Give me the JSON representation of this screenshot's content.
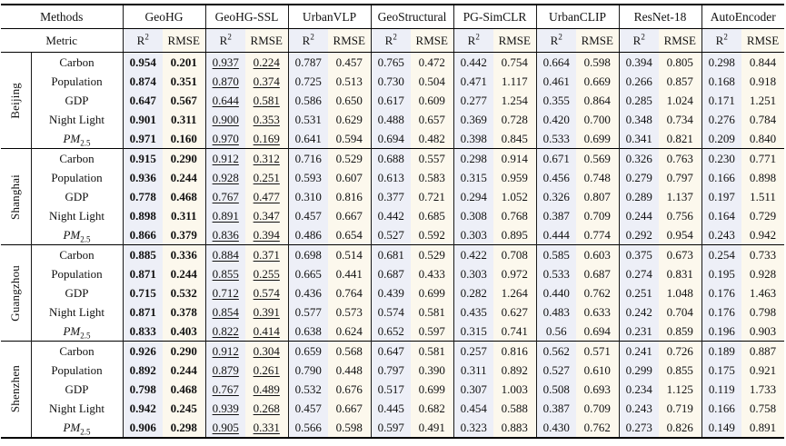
{
  "header": {
    "methods_label": "Methods",
    "metric_label": "Metric",
    "r2": {
      "text": "R",
      "sup": "2"
    },
    "rmse": "RMSE"
  },
  "methods": [
    "GeoHG",
    "GeoHG-SSL",
    "UrbanVLP",
    "GeoStructural",
    "PG-SimCLR",
    "UrbanCLIP",
    "ResNet-18",
    "AutoEncoder"
  ],
  "colors": {
    "r2_column_bg": "#edeff7",
    "rmse_column_bg": "#fcf8ed",
    "rule_color": "#000000"
  },
  "emphasis": {
    "bold_method": "GeoHG",
    "underlined_method": "GeoHG-SSL"
  },
  "sections": [
    {
      "city": "Beijing",
      "rows": [
        {
          "indicator": "Carbon",
          "values": [
            "0.954",
            "0.201",
            "0.937",
            "0.224",
            "0.787",
            "0.457",
            "0.765",
            "0.472",
            "0.442",
            "0.754",
            "0.664",
            "0.598",
            "0.394",
            "0.805",
            "0.298",
            "0.844"
          ]
        },
        {
          "indicator": "Population",
          "values": [
            "0.874",
            "0.351",
            "0.870",
            "0.374",
            "0.725",
            "0.513",
            "0.730",
            "0.504",
            "0.471",
            "1.117",
            "0.461",
            "0.669",
            "0.266",
            "0.857",
            "0.168",
            "0.918"
          ]
        },
        {
          "indicator": "GDP",
          "values": [
            "0.647",
            "0.567",
            "0.644",
            "0.581",
            "0.586",
            "0.650",
            "0.617",
            "0.609",
            "0.277",
            "1.254",
            "0.355",
            "0.864",
            "0.285",
            "1.024",
            "0.171",
            "1.251"
          ]
        },
        {
          "indicator": "Night Light",
          "values": [
            "0.901",
            "0.311",
            "0.900",
            "0.353",
            "0.531",
            "0.629",
            "0.488",
            "0.657",
            "0.369",
            "0.728",
            "0.420",
            "0.700",
            "0.348",
            "0.734",
            "0.276",
            "0.784"
          ]
        },
        {
          "indicator": "PM",
          "indicator_sub": "2.5",
          "italic": true,
          "values": [
            "0.971",
            "0.160",
            "0.970",
            "0.169",
            "0.641",
            "0.594",
            "0.694",
            "0.482",
            "0.398",
            "0.845",
            "0.533",
            "0.699",
            "0.341",
            "0.821",
            "0.209",
            "0.840"
          ]
        }
      ]
    },
    {
      "city": "Shanghai",
      "rows": [
        {
          "indicator": "Carbon",
          "values": [
            "0.915",
            "0.290",
            "0.912",
            "0.312",
            "0.716",
            "0.529",
            "0.688",
            "0.557",
            "0.298",
            "0.914",
            "0.671",
            "0.569",
            "0.326",
            "0.763",
            "0.230",
            "0.771"
          ]
        },
        {
          "indicator": "Population",
          "values": [
            "0.936",
            "0.244",
            "0.928",
            "0.251",
            "0.593",
            "0.607",
            "0.613",
            "0.583",
            "0.315",
            "0.959",
            "0.456",
            "0.748",
            "0.279",
            "0.797",
            "0.166",
            "0.898"
          ]
        },
        {
          "indicator": "GDP",
          "values": [
            "0.778",
            "0.468",
            "0.767",
            "0.477",
            "0.310",
            "0.816",
            "0.377",
            "0.721",
            "0.294",
            "1.052",
            "0.326",
            "0.807",
            "0.289",
            "1.137",
            "0.197",
            "1.511"
          ]
        },
        {
          "indicator": "Night Light",
          "values": [
            "0.898",
            "0.311",
            "0.891",
            "0.347",
            "0.457",
            "0.667",
            "0.442",
            "0.685",
            "0.308",
            "0.768",
            "0.387",
            "0.709",
            "0.244",
            "0.756",
            "0.164",
            "0.729"
          ]
        },
        {
          "indicator": "PM",
          "indicator_sub": "2.5",
          "italic": true,
          "values": [
            "0.866",
            "0.379",
            "0.836",
            "0.394",
            "0.486",
            "0.654",
            "0.527",
            "0.592",
            "0.303",
            "0.895",
            "0.444",
            "0.774",
            "0.292",
            "0.954",
            "0.243",
            "0.942"
          ]
        }
      ]
    },
    {
      "city": "Guangzhou",
      "rows": [
        {
          "indicator": "Carbon",
          "values": [
            "0.885",
            "0.336",
            "0.884",
            "0.371",
            "0.698",
            "0.514",
            "0.681",
            "0.529",
            "0.422",
            "0.708",
            "0.585",
            "0.603",
            "0.375",
            "0.673",
            "0.254",
            "0.733"
          ]
        },
        {
          "indicator": "Population",
          "values": [
            "0.871",
            "0.244",
            "0.855",
            "0.255",
            "0.665",
            "0.441",
            "0.687",
            "0.433",
            "0.303",
            "0.972",
            "0.533",
            "0.687",
            "0.274",
            "0.831",
            "0.195",
            "0.928"
          ]
        },
        {
          "indicator": "GDP",
          "values": [
            "0.715",
            "0.532",
            "0.712",
            "0.574",
            "0.436",
            "0.764",
            "0.439",
            "0.699",
            "0.282",
            "1.264",
            "0.440",
            "0.762",
            "0.251",
            "1.048",
            "0.176",
            "1.463"
          ]
        },
        {
          "indicator": "Night Light",
          "values": [
            "0.871",
            "0.378",
            "0.854",
            "0.391",
            "0.577",
            "0.573",
            "0.574",
            "0.581",
            "0.435",
            "0.627",
            "0.483",
            "0.633",
            "0.242",
            "0.704",
            "0.176",
            "0.798"
          ]
        },
        {
          "indicator": "PM",
          "indicator_sub": "2.5",
          "italic": true,
          "values": [
            "0.833",
            "0.403",
            "0.822",
            "0.414",
            "0.638",
            "0.624",
            "0.652",
            "0.597",
            "0.315",
            "0.741",
            "0.56",
            "0.694",
            "0.231",
            "0.859",
            "0.196",
            "0.903"
          ]
        }
      ]
    },
    {
      "city": "Shenzhen",
      "rows": [
        {
          "indicator": "Carbon",
          "values": [
            "0.926",
            "0.290",
            "0.912",
            "0.304",
            "0.659",
            "0.568",
            "0.647",
            "0.581",
            "0.257",
            "0.816",
            "0.562",
            "0.571",
            "0.241",
            "0.726",
            "0.189",
            "0.887"
          ]
        },
        {
          "indicator": "Population",
          "values": [
            "0.892",
            "0.244",
            "0.879",
            "0.261",
            "0.790",
            "0.448",
            "0.797",
            "0.390",
            "0.311",
            "0.892",
            "0.527",
            "0.610",
            "0.299",
            "0.855",
            "0.175",
            "0.921"
          ]
        },
        {
          "indicator": "GDP",
          "values": [
            "0.798",
            "0.468",
            "0.767",
            "0.489",
            "0.532",
            "0.676",
            "0.517",
            "0.699",
            "0.307",
            "1.003",
            "0.508",
            "0.693",
            "0.234",
            "1.125",
            "0.119",
            "1.733"
          ]
        },
        {
          "indicator": "Night Light",
          "values": [
            "0.942",
            "0.245",
            "0.939",
            "0.268",
            "0.457",
            "0.667",
            "0.445",
            "0.682",
            "0.454",
            "0.588",
            "0.387",
            "0.709",
            "0.243",
            "0.719",
            "0.166",
            "0.758"
          ]
        },
        {
          "indicator": "PM",
          "indicator_sub": "2.5",
          "italic": true,
          "values": [
            "0.906",
            "0.298",
            "0.905",
            "0.331",
            "0.566",
            "0.598",
            "0.597",
            "0.491",
            "0.323",
            "0.883",
            "0.430",
            "0.762",
            "0.273",
            "0.826",
            "0.149",
            "0.891"
          ]
        }
      ]
    }
  ]
}
